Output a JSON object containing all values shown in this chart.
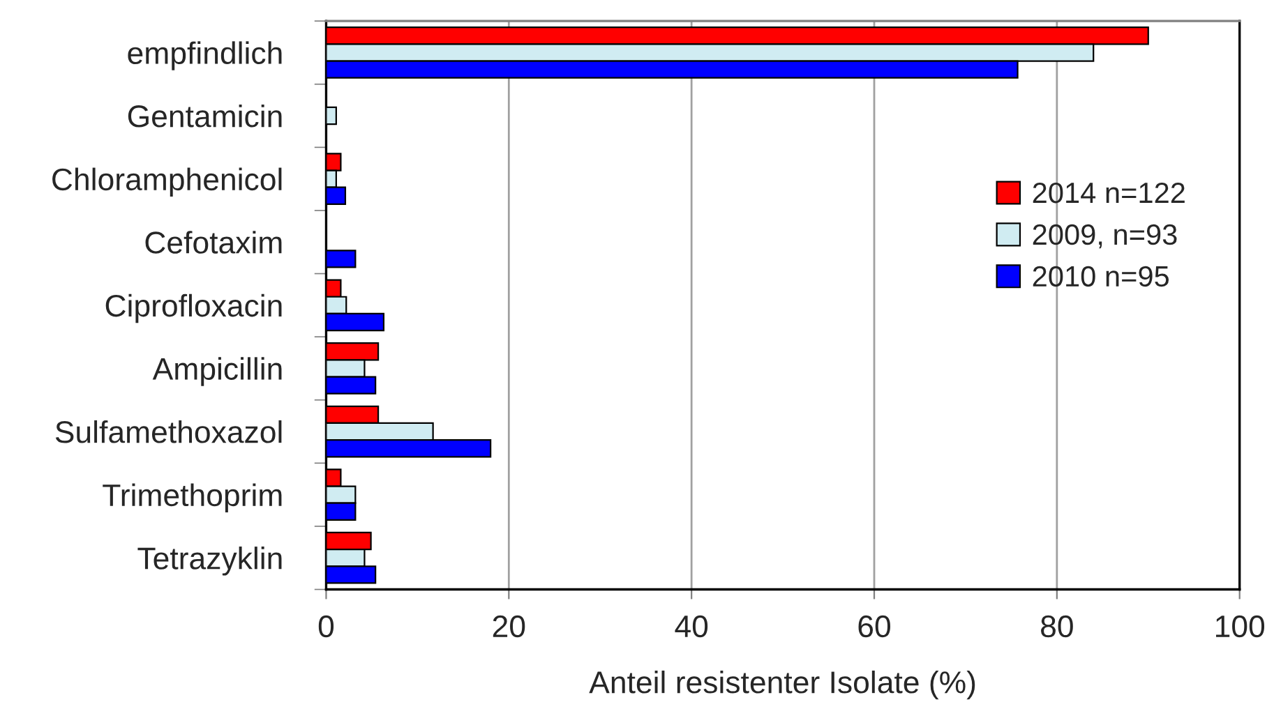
{
  "chart_data": {
    "type": "bar",
    "orientation": "horizontal",
    "xlabel": "Anteil resistenter Isolate (%)",
    "categories": [
      "empfindlich",
      "Gentamicin",
      "Chloramphenicol",
      "Cefotaxim",
      "Ciprofloxacin",
      "Ampicillin",
      "Sulfamethoxazol",
      "Trimethoprim",
      "Tetrazyklin"
    ],
    "series": [
      {
        "name": "2014 n=122",
        "color": "#ff0000",
        "values": [
          90,
          null,
          1.6,
          null,
          1.6,
          5.7,
          5.7,
          1.6,
          4.9
        ]
      },
      {
        "name": "2009, n=93",
        "color": "#d0ecf2",
        "values": [
          84,
          1.1,
          1.1,
          null,
          2.2,
          4.2,
          11.7,
          3.2,
          4.2
        ]
      },
      {
        "name": "2010 n=95",
        "color": "#0000ff",
        "values": [
          75.7,
          null,
          2.1,
          3.2,
          6.3,
          5.4,
          18.0,
          3.2,
          5.4
        ]
      }
    ],
    "xlim": [
      0,
      100
    ],
    "xticks": [
      0,
      20,
      40,
      60,
      80,
      100
    ],
    "grid": "x",
    "legend": "right"
  }
}
